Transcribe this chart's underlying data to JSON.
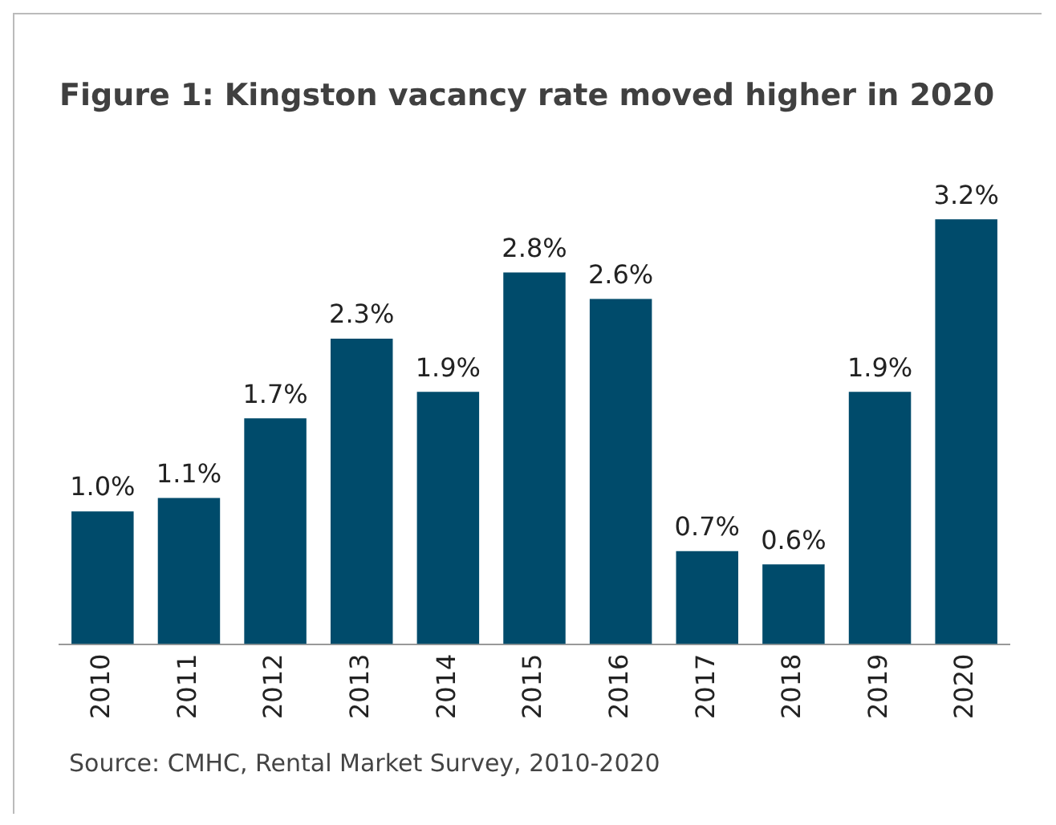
{
  "chart_data": {
    "type": "bar",
    "title": "Figure 1: Kingston vacancy rate moved higher in 2020",
    "categories": [
      "2010",
      "2011",
      "2012",
      "2013",
      "2014",
      "2015",
      "2016",
      "2017",
      "2018",
      "2019",
      "2020"
    ],
    "values": [
      1.0,
      1.1,
      1.7,
      2.3,
      1.9,
      2.8,
      2.6,
      0.7,
      0.6,
      1.9,
      3.2
    ],
    "value_labels": [
      "1.0%",
      "1.1%",
      "1.7%",
      "2.3%",
      "1.9%",
      "2.8%",
      "2.6%",
      "0.7%",
      "0.6%",
      "1.9%",
      "3.2%"
    ],
    "color": "#004b6b",
    "annotations": [
      "Source: CMHC, Rental Market Survey, 2010-2020"
    ],
    "grid": false,
    "legend": false
  }
}
